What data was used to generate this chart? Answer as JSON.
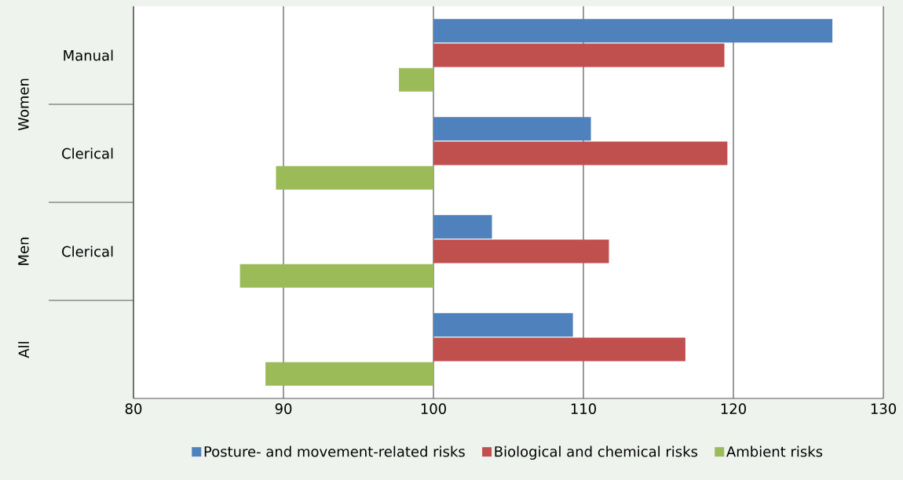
{
  "chart_data": {
    "type": "bar",
    "orientation": "horizontal",
    "categories": [
      "Manual",
      "Clerical",
      "Clerical",
      null
    ],
    "annotations": [
      "Women",
      "Men",
      "All"
    ],
    "series": [
      {
        "name": "Posture- and movement-related risks",
        "color": "#4f81bd",
        "base": [
          100,
          100,
          100,
          100
        ],
        "values": [
          26.6,
          10.5,
          3.9,
          9.3
        ]
      },
      {
        "name": "Biological and chemical risks",
        "color": "#c0504d",
        "base": [
          100,
          100,
          100,
          100
        ],
        "values": [
          19.4,
          19.6,
          11.7,
          16.8
        ]
      },
      {
        "name": "Ambient risks",
        "color": "#9bbb59",
        "base": [
          100,
          100,
          100,
          100
        ],
        "values": [
          -2.3,
          -10.5,
          -12.9,
          -11.2
        ]
      }
    ],
    "xlim": [
      80,
      130
    ],
    "xticks": [
      80,
      90,
      100,
      110,
      120,
      130
    ],
    "grid": "x",
    "legend": "bottom"
  }
}
